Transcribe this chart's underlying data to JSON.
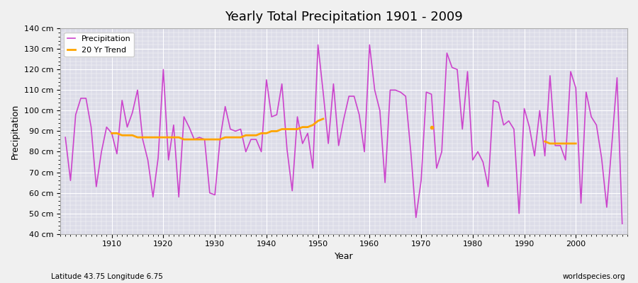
{
  "title": "Yearly Total Precipitation 1901 - 2009",
  "xlabel": "Year",
  "ylabel": "Precipitation",
  "subtitle_left": "Latitude 43.75 Longitude 6.75",
  "subtitle_right": "worldspecies.org",
  "ylim": [
    40,
    140
  ],
  "ytick_values": [
    40,
    50,
    60,
    70,
    80,
    90,
    100,
    110,
    120,
    130,
    140
  ],
  "precip_color": "#CC44CC",
  "trend_color": "#FFA500",
  "fig_bg_color": "#F0F0F0",
  "plot_bg_color": "#DCDCE8",
  "grid_color": "#FFFFFF",
  "years": [
    1901,
    1902,
    1903,
    1904,
    1905,
    1906,
    1907,
    1908,
    1909,
    1910,
    1911,
    1912,
    1913,
    1914,
    1915,
    1916,
    1917,
    1918,
    1919,
    1920,
    1921,
    1922,
    1923,
    1924,
    1925,
    1926,
    1927,
    1928,
    1929,
    1930,
    1931,
    1932,
    1933,
    1934,
    1935,
    1936,
    1937,
    1938,
    1939,
    1940,
    1941,
    1942,
    1943,
    1944,
    1945,
    1946,
    1947,
    1948,
    1949,
    1950,
    1951,
    1952,
    1953,
    1954,
    1955,
    1956,
    1957,
    1958,
    1959,
    1960,
    1961,
    1962,
    1963,
    1964,
    1965,
    1966,
    1967,
    1968,
    1969,
    1970,
    1971,
    1972,
    1973,
    1974,
    1975,
    1976,
    1977,
    1978,
    1979,
    1980,
    1981,
    1982,
    1983,
    1984,
    1985,
    1986,
    1987,
    1988,
    1989,
    1990,
    1991,
    1992,
    1993,
    1994,
    1995,
    1996,
    1997,
    1998,
    1999,
    2000,
    2001,
    2002,
    2003,
    2004,
    2005,
    2006,
    2007,
    2008,
    2009
  ],
  "precip": [
    87,
    66,
    98,
    106,
    106,
    92,
    63,
    80,
    92,
    89,
    79,
    105,
    92,
    99,
    110,
    86,
    76,
    58,
    77,
    120,
    76,
    93,
    58,
    97,
    92,
    86,
    87,
    86,
    60,
    59,
    86,
    102,
    91,
    90,
    91,
    80,
    86,
    86,
    80,
    115,
    97,
    98,
    113,
    81,
    61,
    97,
    84,
    89,
    72,
    132,
    109,
    84,
    113,
    83,
    96,
    107,
    107,
    98,
    80,
    132,
    110,
    100,
    65,
    110,
    110,
    109,
    107,
    80,
    48,
    66,
    109,
    108,
    72,
    80,
    128,
    121,
    120,
    91,
    119,
    76,
    80,
    75,
    63,
    105,
    104,
    93,
    95,
    91,
    50,
    101,
    92,
    78,
    100,
    78,
    117,
    83,
    83,
    76,
    119,
    111,
    55,
    109,
    97,
    93,
    77,
    53,
    84,
    116,
    45
  ],
  "trend_seg1_years": [
    1910,
    1911,
    1912,
    1913,
    1914,
    1915,
    1916,
    1917,
    1918,
    1919,
    1920,
    1921,
    1922,
    1923,
    1924,
    1925,
    1926,
    1927,
    1928,
    1929,
    1930,
    1931,
    1932,
    1933,
    1934,
    1935,
    1936,
    1937,
    1938,
    1939,
    1940,
    1941,
    1942,
    1943,
    1944,
    1945,
    1946,
    1947,
    1948,
    1949,
    1950,
    1951
  ],
  "trend_seg1": [
    89,
    89,
    88,
    88,
    88,
    87,
    87,
    87,
    87,
    87,
    87,
    87,
    87,
    87,
    86,
    86,
    86,
    86,
    86,
    86,
    86,
    86,
    87,
    87,
    87,
    87,
    88,
    88,
    88,
    89,
    89,
    90,
    90,
    91,
    91,
    91,
    91,
    92,
    92,
    93,
    95,
    96
  ],
  "trend_seg2_years": [
    1972
  ],
  "trend_seg2": [
    92
  ],
  "trend_seg3_years": [
    1994,
    1995,
    1996,
    1997,
    1998,
    1999,
    2000
  ],
  "trend_seg3": [
    85,
    84,
    84,
    84,
    84,
    84,
    84
  ]
}
